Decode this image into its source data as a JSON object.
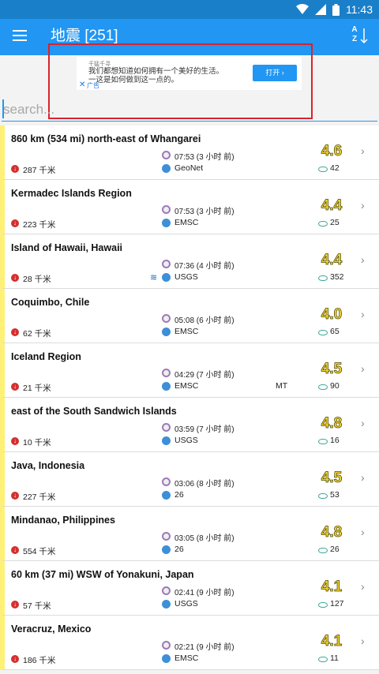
{
  "status": {
    "time": "11:43"
  },
  "appbar": {
    "title": "地震 [251]",
    "sort_letters": "A\nZ"
  },
  "ad": {
    "brand": "千猛千寻",
    "text": "我们都想知道如何拥有一个美好的生活。\n一这是如何做到这一点的。",
    "close": "✕",
    "label": "广告",
    "button": "打开 ›"
  },
  "search": {
    "placeholder": "search..."
  },
  "quakes": [
    {
      "place": "860 km (534 mi) north-east of Whangarei",
      "depth": "287 千米",
      "time": "07:53 (3 小时 前)",
      "source": "GeoNet",
      "flag": "",
      "tsunami": false,
      "mag": "4.6",
      "views": "42"
    },
    {
      "place": "Kermadec Islands Region",
      "depth": "223 千米",
      "time": "07:53 (3 小时 前)",
      "source": "EMSC",
      "flag": "",
      "tsunami": false,
      "mag": "4.4",
      "views": "25"
    },
    {
      "place": "Island of Hawaii, Hawaii",
      "depth": "28 千米",
      "time": "07:36 (4 小时 前)",
      "source": "USGS",
      "flag": "",
      "tsunami": true,
      "mag": "4.4",
      "views": "352"
    },
    {
      "place": "Coquimbo, Chile",
      "depth": "62 千米",
      "time": "05:08 (6 小时 前)",
      "source": "EMSC",
      "flag": "",
      "tsunami": false,
      "mag": "4.0",
      "views": "65"
    },
    {
      "place": "Iceland Region",
      "depth": "21 千米",
      "time": "04:29 (7 小时 前)",
      "source": "EMSC",
      "flag": "MT",
      "tsunami": false,
      "mag": "4.5",
      "views": "90"
    },
    {
      "place": "east of the South Sandwich Islands",
      "depth": "10 千米",
      "time": "03:59 (7 小时 前)",
      "source": "USGS",
      "flag": "",
      "tsunami": false,
      "mag": "4.8",
      "views": "16"
    },
    {
      "place": "Java, Indonesia",
      "depth": "227 千米",
      "time": "03:06 (8 小时 前)",
      "source": "26",
      "flag": "",
      "tsunami": false,
      "mag": "4.5",
      "views": "53"
    },
    {
      "place": "Mindanao, Philippines",
      "depth": "554 千米",
      "time": "03:05 (8 小时 前)",
      "source": "26",
      "flag": "",
      "tsunami": false,
      "mag": "4.8",
      "views": "26"
    },
    {
      "place": "60 km (37 mi) WSW of Yonakuni, Japan",
      "depth": "57 千米",
      "time": "02:41 (9 小时 前)",
      "source": "USGS",
      "flag": "",
      "tsunami": false,
      "mag": "4.1",
      "views": "127"
    },
    {
      "place": "Veracruz, Mexico",
      "depth": "186 千米",
      "time": "02:21 (9 小时 前)",
      "source": "EMSC",
      "flag": "",
      "tsunami": false,
      "mag": "4.1",
      "views": "11"
    }
  ],
  "colors": {
    "statusbar": "#1a7fc9",
    "appbar": "#2196f3",
    "magnitude": "#fdd835",
    "row_marker": "#fff176",
    "ad_frame": "#d9232a"
  }
}
